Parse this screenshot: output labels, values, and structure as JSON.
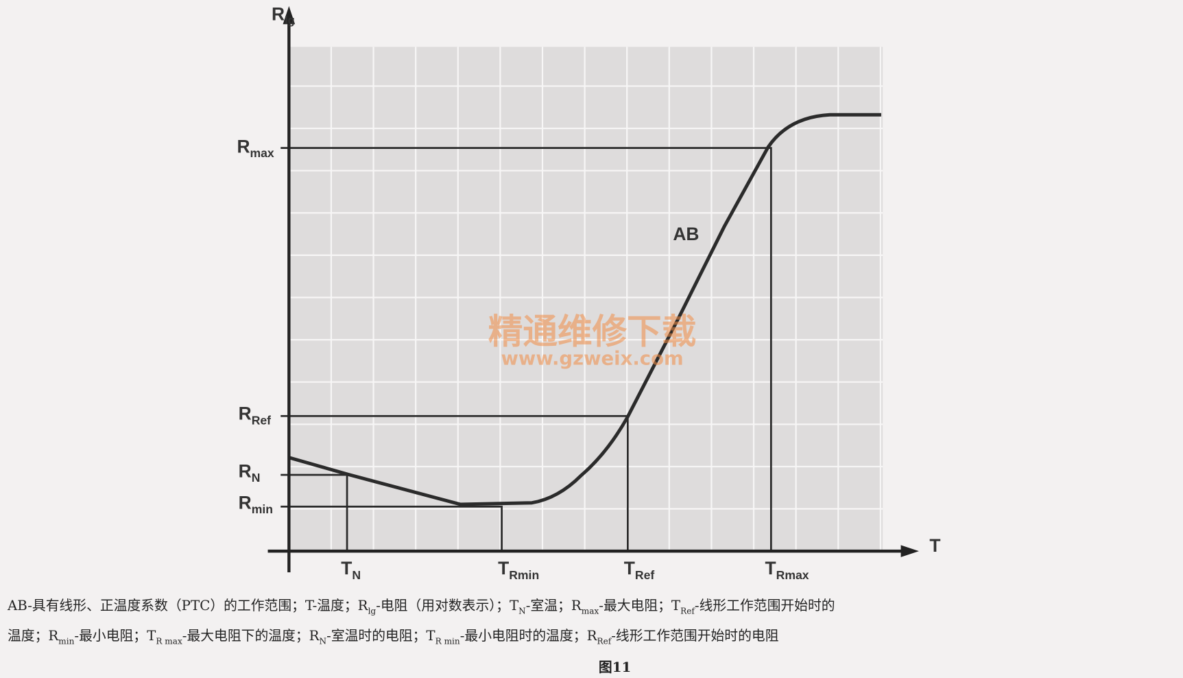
{
  "labels": {
    "y_axis": {
      "main": "R",
      "sub": "lg"
    },
    "x_axis": "T",
    "r_max": {
      "main": "R",
      "sub": "max"
    },
    "r_ref": {
      "main": "R",
      "sub": "Ref"
    },
    "r_n": {
      "main": "R",
      "sub": "N"
    },
    "r_min": {
      "main": "R",
      "sub": "min"
    },
    "t_n": {
      "main": "T",
      "sub": "N"
    },
    "t_rmin": {
      "main": "T",
      "sub": "Rmin"
    },
    "t_ref": {
      "main": "T",
      "sub": "Ref"
    },
    "t_rmax": {
      "main": "T",
      "sub": "Rmax"
    },
    "curve": "AB"
  },
  "watermark": {
    "title": "精通维修下载",
    "url": "www.gzweix.com"
  },
  "caption": {
    "lines": [
      [
        "AB-具有线形、正温度系数（PTC）的工作范围；T-温度；R",
        {
          "sub": "lg"
        },
        "-电阻（用对数表示）；T",
        {
          "sub": "N"
        },
        "-室温；R",
        {
          "sub": "max"
        },
        "-最大电阻；T",
        {
          "sub": "Ref"
        },
        "-线形工作范围开始时的"
      ],
      [
        "温度；R",
        {
          "sub": "min"
        },
        "-最小电阻；T",
        {
          "sub": "R max"
        },
        "-最大电阻下的温度；R",
        {
          "sub": "N"
        },
        "-室温时的电阻；T",
        {
          "sub": "R min"
        },
        "-最小电阻时的温度；R",
        {
          "sub": "Ref"
        },
        "-线形工作范围开始时的电阻"
      ]
    ],
    "figure": "图11"
  }
}
